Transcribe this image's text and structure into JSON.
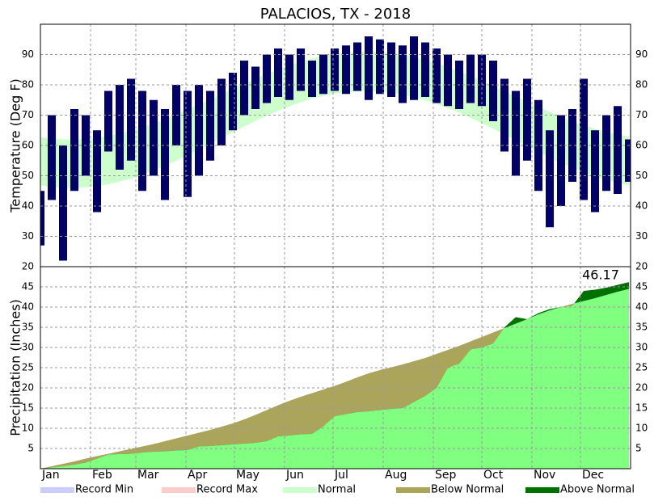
{
  "legend": [
    {
      "name": "Record Min",
      "color": "#ccccff"
    },
    {
      "name": "Record Max",
      "color": "#ffcccc"
    },
    {
      "name": "Normal",
      "color": "#ccffcc"
    },
    {
      "name": "Below Normal",
      "color": "#aaa55a"
    },
    {
      "name": "Above Normal",
      "color": "#007000"
    }
  ],
  "chart_data": [
    {
      "type": "range_bar",
      "title": "PALACIOS, TX - 2018",
      "y_label": "Temperature (Deg F)",
      "x": [
        1,
        8,
        15,
        22,
        29,
        36,
        43,
        50,
        57,
        64,
        71,
        78,
        85,
        92,
        99,
        106,
        113,
        120,
        127,
        134,
        141,
        148,
        155,
        162,
        169,
        176,
        183,
        190,
        197,
        204,
        211,
        218,
        225,
        232,
        239,
        246,
        253,
        260,
        267,
        274,
        281,
        288,
        295,
        302,
        309,
        316,
        323,
        330,
        337,
        344,
        351,
        358,
        365
      ],
      "low": [
        27,
        42,
        22,
        45,
        50,
        38,
        58,
        52,
        55,
        45,
        50,
        42,
        60,
        43,
        50,
        55,
        60,
        65,
        70,
        72,
        74,
        76,
        75,
        78,
        76,
        77,
        78,
        77,
        78,
        75,
        77,
        76,
        74,
        75,
        76,
        74,
        73,
        72,
        74,
        73,
        68,
        58,
        50,
        55,
        45,
        33,
        40,
        48,
        42,
        38,
        45,
        44,
        48
      ],
      "high": [
        45,
        70,
        60,
        72,
        70,
        65,
        78,
        80,
        82,
        78,
        75,
        72,
        80,
        78,
        80,
        78,
        82,
        84,
        88,
        86,
        90,
        92,
        90,
        92,
        88,
        90,
        92,
        93,
        94,
        96,
        95,
        94,
        93,
        96,
        94,
        92,
        90,
        88,
        90,
        90,
        88,
        82,
        78,
        82,
        75,
        65,
        70,
        72,
        82,
        65,
        70,
        73,
        62
      ],
      "color": "#000066",
      "normal_low": [
        46.8,
        46.3,
        46.0,
        46.0,
        46.2,
        46.6,
        47.2,
        48.1,
        49.1,
        50.4,
        51.8,
        53.3,
        55.0,
        56.8,
        58.7,
        60.6,
        62.5,
        64.4,
        66.3,
        68.1,
        69.8,
        71.5,
        72.9,
        74.3,
        75.4,
        76.4,
        77.1,
        77.6,
        77.9,
        78.0,
        77.8,
        77.4,
        76.8,
        76.0,
        74.9,
        73.7,
        72.3,
        70.8,
        69.1,
        67.3,
        65.5,
        63.6,
        61.7,
        59.7,
        57.9,
        56.0,
        54.3,
        52.7,
        51.2,
        49.8,
        48.7,
        47.7,
        46.9
      ],
      "normal_high": [
        62.8,
        62.3,
        62.0,
        62.0,
        62.2,
        62.5,
        63.1,
        63.9,
        64.8,
        66.0,
        67.2,
        68.6,
        70.2,
        71.8,
        73.5,
        75.2,
        76.9,
        78.7,
        80.4,
        82.0,
        83.6,
        85.1,
        86.4,
        87.6,
        88.7,
        89.5,
        90.2,
        90.7,
        90.9,
        91.0,
        90.8,
        90.5,
        89.9,
        89.2,
        88.2,
        87.1,
        85.9,
        84.5,
        82.9,
        81.3,
        79.7,
        77.9,
        76.2,
        74.5,
        72.7,
        71.1,
        69.5,
        68.0,
        66.7,
        65.5,
        64.4,
        63.6,
        62.9
      ],
      "xlim": [
        1,
        366
      ],
      "ylim": [
        20,
        100
      ],
      "yticks": [
        20,
        30,
        40,
        50,
        60,
        70,
        80,
        90
      ],
      "grid": true
    },
    {
      "type": "cumulative_area",
      "y_label": "Precipitation (Inches)",
      "x": [
        1,
        8,
        15,
        22,
        29,
        36,
        43,
        50,
        57,
        64,
        71,
        78,
        85,
        92,
        99,
        106,
        113,
        120,
        127,
        134,
        141,
        148,
        155,
        162,
        169,
        176,
        183,
        190,
        197,
        204,
        211,
        218,
        225,
        232,
        239,
        246,
        253,
        260,
        267,
        274,
        281,
        288,
        295,
        302,
        309,
        316,
        323,
        330,
        337,
        344,
        351,
        358,
        365
      ],
      "observed": [
        0,
        0.3,
        0.6,
        1.0,
        1.5,
        2.5,
        3.5,
        3.6,
        3.7,
        4.0,
        4.2,
        4.3,
        4.5,
        4.6,
        5.5,
        5.6,
        5.8,
        6.0,
        6.2,
        6.4,
        6.8,
        8.0,
        8.2,
        8.5,
        8.6,
        10.5,
        13.0,
        13.5,
        14.0,
        14.2,
        14.5,
        14.8,
        15.0,
        16.5,
        18.0,
        20.0,
        25.0,
        26.0,
        29.5,
        30.0,
        31.0,
        35.0,
        37.5,
        37.0,
        38.5,
        39.5,
        40.0,
        40.3,
        44.0,
        44.3,
        44.8,
        45.5,
        46.17
      ],
      "normal": [
        0,
        0.6,
        1.2,
        1.8,
        2.5,
        3.1,
        3.7,
        4.3,
        4.9,
        5.5,
        6.1,
        6.8,
        7.5,
        8.2,
        8.9,
        9.6,
        10.4,
        11.2,
        12.2,
        13.3,
        14.5,
        15.7,
        16.8,
        17.8,
        18.7,
        19.6,
        20.5,
        21.5,
        22.6,
        23.6,
        24.4,
        25.1,
        25.8,
        26.6,
        27.4,
        28.4,
        29.4,
        30.4,
        31.5,
        32.6,
        33.7,
        34.8,
        35.9,
        37.0,
        38.2,
        39.2,
        40.0,
        40.8,
        41.5,
        42.2,
        43.0,
        43.8,
        44.5
      ],
      "observed_color": "#80ff80",
      "annotation": 46.17,
      "xlim": [
        1,
        366
      ],
      "ylim": [
        0,
        50
      ],
      "yticks": [
        5,
        10,
        15,
        20,
        25,
        30,
        35,
        40,
        45
      ],
      "xticks": [
        {
          "value": 1,
          "label": "Jan"
        },
        {
          "value": 32,
          "label": "Feb"
        },
        {
          "value": 60,
          "label": "Mar"
        },
        {
          "value": 91,
          "label": "Apr"
        },
        {
          "value": 121,
          "label": "May"
        },
        {
          "value": 152,
          "label": "Jun"
        },
        {
          "value": 182,
          "label": "Jul"
        },
        {
          "value": 213,
          "label": "Aug"
        },
        {
          "value": 244,
          "label": "Sep"
        },
        {
          "value": 274,
          "label": "Oct"
        },
        {
          "value": 305,
          "label": "Nov"
        },
        {
          "value": 335,
          "label": "Dec"
        }
      ],
      "grid": true
    }
  ]
}
